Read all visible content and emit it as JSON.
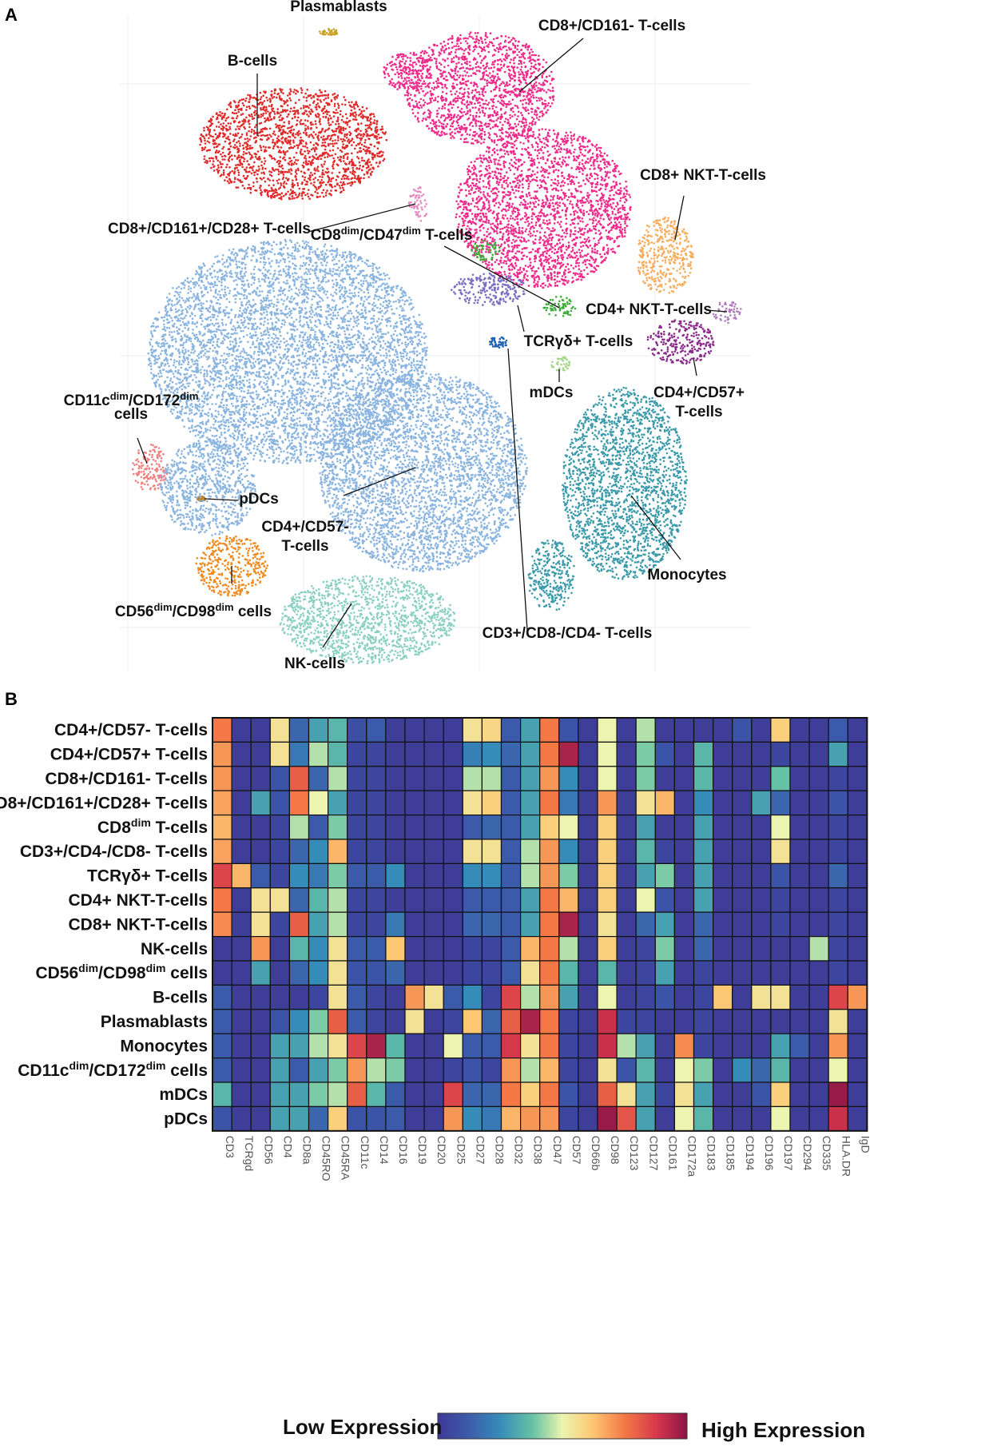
{
  "panels": {
    "a": "A",
    "b": "B"
  },
  "chart_data": [
    {
      "type": "scatter",
      "title": "",
      "clusters": [
        {
          "name": "B-cells",
          "label": "B-cells",
          "color": "#e02a2a"
        },
        {
          "name": "Plasmablasts",
          "label": "Plasmablasts",
          "color": "#c9a227"
        },
        {
          "name": "CD8+/CD161- T-cells",
          "label": "CD8+/CD161- T-cells",
          "color": "#ee2a8a"
        },
        {
          "name": "CD8+/CD161+/CD28+ T-cells",
          "label": "CD8+/CD161+/CD28+ T-cells",
          "color": "#e58ac0"
        },
        {
          "name": "CD8dim/CD47dim T-cells",
          "label_main": "CD8",
          "label_sup1": "dim",
          "label_mid": "/CD47",
          "label_sup2": "dim",
          "label_end": " T-cells",
          "color": "#3daa3a"
        },
        {
          "name": "CD8+ NKT-T-cells",
          "label": "CD8+ NKT-T-cells",
          "color": "#f6ad5e"
        },
        {
          "name": "CD4+ NKT-T-cells",
          "label": "CD4+ NKT-T-cells",
          "color": "#b07cc0"
        },
        {
          "name": "TCRγδ+ T-cells",
          "label": "TCRγδ+ T-cells",
          "color": "#7a6cc0"
        },
        {
          "name": "CD4+/CD57+ T-cells",
          "label_line1": "CD4+/CD57+",
          "label_line2": "T-cells",
          "color": "#8a2a8a"
        },
        {
          "name": "mDCs",
          "label": "mDCs",
          "color": "#a6d68a"
        },
        {
          "name": "CD11cdim/CD172dim cells",
          "label_main": "CD11c",
          "label_sup1": "dim",
          "label_mid": "/CD172",
          "label_sup2": "dim",
          "label_line2": "cells",
          "color": "#f08080"
        },
        {
          "name": "pDCs",
          "label": "pDCs",
          "color": "#b8862a"
        },
        {
          "name": "CD4+/CD57- T-cells",
          "label_line1": "CD4+/CD57-",
          "label_line2": "T-cells",
          "color": "#8ab4e0"
        },
        {
          "name": "Monocytes",
          "label": "Monocytes",
          "color": "#3a9aaa"
        },
        {
          "name": "CD56dim/CD98dim cells",
          "label_main": "CD56",
          "label_sup1": "dim",
          "label_mid": "/CD98",
          "label_sup2": "dim",
          "label_end": " cells",
          "color": "#f08a1e"
        },
        {
          "name": "NK-cells",
          "label": "NK-cells",
          "color": "#8ad0c0"
        },
        {
          "name": "CD3+/CD8-/CD4- T-cells",
          "label": "CD3+/CD8-/CD4- T-cells",
          "color": "#1f5fb0"
        }
      ]
    },
    {
      "type": "heatmap",
      "title": "",
      "rows": [
        "CD4+/CD57- T-cells",
        "CD4+/CD57+ T-cells",
        "CD8+/CD161- T-cells",
        "CD8+/CD161+/CD28+ T-cells",
        "CD8dim T-cells",
        "CD3+/CD4-/CD8- T-cells",
        "TCRγδ+ T-cells",
        "CD4+ NKT-T-cells",
        "CD8+ NKT-T-cells",
        "NK-cells",
        "CD56dim/CD98dim cells",
        "B-cells",
        "Plasmablasts",
        "Monocytes",
        "CD11cdim/CD172dim cells",
        "mDCs",
        "pDCs"
      ],
      "row_labels": [
        {
          "main": "CD4+/CD57- T-cells"
        },
        {
          "main": "CD4+/CD57+ T-cells"
        },
        {
          "main": "CD8+/CD161- T-cells"
        },
        {
          "main": "CD8+/CD161+/CD28+ T-cells"
        },
        {
          "main": "CD8",
          "sup": "dim",
          "rest": " T-cells"
        },
        {
          "main": "CD3+/CD4-/CD8- T-cells"
        },
        {
          "main": "TCRγδ+ T-cells"
        },
        {
          "main": "CD4+ NKT-T-cells"
        },
        {
          "main": "CD8+ NKT-T-cells"
        },
        {
          "main": "NK-cells"
        },
        {
          "main": "CD56",
          "sup": "dim",
          "mid": "/CD98",
          "sup2": "dim",
          "rest": " cells"
        },
        {
          "main": "B-cells"
        },
        {
          "main": "Plasmablasts"
        },
        {
          "main": "Monocytes"
        },
        {
          "main": "CD11c",
          "sup": "dim",
          "mid": "/CD172",
          "sup2": "dim",
          "rest": " cells"
        },
        {
          "main": "mDCs"
        },
        {
          "main": "pDCs"
        }
      ],
      "columns": [
        "CD3",
        "TCRgd",
        "CD56",
        "CD4",
        "CD8a",
        "CD45RO",
        "CD45RA",
        "CD11c",
        "CD14",
        "CD16",
        "CD19",
        "CD20",
        "CD25",
        "CD27",
        "CD28",
        "CD32",
        "CD38",
        "CD47",
        "CD57",
        "CD66b",
        "CD98",
        "CD123",
        "CD127",
        "CD161",
        "CD172a",
        "CD183",
        "CD185",
        "CD194",
        "CD196",
        "CD197",
        "CD294",
        "CD335",
        "HLA.DR",
        "IgD"
      ],
      "value_range": [
        0,
        1
      ],
      "values": [
        [
          0.75,
          0.02,
          0.02,
          0.55,
          0.15,
          0.3,
          0.35,
          0.08,
          0.12,
          0.02,
          0.02,
          0.02,
          0.02,
          0.55,
          0.58,
          0.12,
          0.3,
          0.75,
          0.1,
          0.02,
          0.5,
          0.02,
          0.45,
          0.02,
          0.02,
          0.02,
          0.02,
          0.1,
          0.02,
          0.6,
          0.02,
          0.02,
          0.12,
          0.02
        ],
        [
          0.7,
          0.02,
          0.02,
          0.55,
          0.2,
          0.45,
          0.35,
          0.05,
          0.05,
          0.02,
          0.02,
          0.02,
          0.02,
          0.22,
          0.25,
          0.15,
          0.3,
          0.75,
          0.95,
          0.02,
          0.5,
          0.02,
          0.4,
          0.1,
          0.02,
          0.35,
          0.02,
          0.02,
          0.02,
          0.05,
          0.02,
          0.02,
          0.3,
          0.02
        ],
        [
          0.7,
          0.02,
          0.02,
          0.1,
          0.8,
          0.15,
          0.45,
          0.05,
          0.05,
          0.02,
          0.02,
          0.02,
          0.02,
          0.45,
          0.45,
          0.12,
          0.3,
          0.7,
          0.25,
          0.02,
          0.5,
          0.02,
          0.4,
          0.02,
          0.02,
          0.35,
          0.02,
          0.02,
          0.02,
          0.38,
          0.02,
          0.02,
          0.05,
          0.02
        ],
        [
          0.68,
          0.02,
          0.3,
          0.1,
          0.75,
          0.5,
          0.3,
          0.05,
          0.05,
          0.02,
          0.02,
          0.02,
          0.02,
          0.55,
          0.6,
          0.12,
          0.3,
          0.75,
          0.2,
          0.02,
          0.7,
          0.02,
          0.55,
          0.65,
          0.02,
          0.25,
          0.02,
          0.02,
          0.3,
          0.15,
          0.02,
          0.02,
          0.1,
          0.02
        ],
        [
          0.65,
          0.02,
          0.02,
          0.05,
          0.45,
          0.12,
          0.4,
          0.05,
          0.05,
          0.02,
          0.02,
          0.02,
          0.02,
          0.12,
          0.15,
          0.12,
          0.3,
          0.6,
          0.5,
          0.02,
          0.6,
          0.02,
          0.3,
          0.02,
          0.02,
          0.3,
          0.02,
          0.02,
          0.02,
          0.5,
          0.02,
          0.02,
          0.05,
          0.02
        ],
        [
          0.68,
          0.02,
          0.02,
          0.05,
          0.15,
          0.25,
          0.65,
          0.05,
          0.05,
          0.02,
          0.02,
          0.02,
          0.02,
          0.55,
          0.55,
          0.12,
          0.45,
          0.7,
          0.25,
          0.02,
          0.6,
          0.02,
          0.35,
          0.05,
          0.02,
          0.3,
          0.02,
          0.02,
          0.02,
          0.55,
          0.02,
          0.02,
          0.05,
          0.02
        ],
        [
          0.85,
          0.65,
          0.12,
          0.05,
          0.25,
          0.2,
          0.4,
          0.12,
          0.12,
          0.25,
          0.02,
          0.02,
          0.02,
          0.25,
          0.25,
          0.12,
          0.45,
          0.7,
          0.4,
          0.02,
          0.6,
          0.02,
          0.3,
          0.4,
          0.02,
          0.3,
          0.02,
          0.02,
          0.02,
          0.1,
          0.02,
          0.02,
          0.15,
          0.02
        ],
        [
          0.75,
          0.02,
          0.55,
          0.55,
          0.15,
          0.35,
          0.45,
          0.05,
          0.05,
          0.02,
          0.02,
          0.02,
          0.02,
          0.12,
          0.12,
          0.12,
          0.3,
          0.75,
          0.65,
          0.02,
          0.6,
          0.02,
          0.5,
          0.1,
          0.02,
          0.3,
          0.02,
          0.02,
          0.02,
          0.05,
          0.02,
          0.02,
          0.05,
          0.02
        ],
        [
          0.72,
          0.02,
          0.55,
          0.05,
          0.8,
          0.3,
          0.45,
          0.05,
          0.05,
          0.2,
          0.02,
          0.02,
          0.02,
          0.15,
          0.15,
          0.12,
          0.3,
          0.75,
          0.95,
          0.02,
          0.55,
          0.02,
          0.15,
          0.3,
          0.02,
          0.15,
          0.02,
          0.02,
          0.02,
          0.05,
          0.02,
          0.02,
          0.05,
          0.02
        ],
        [
          0.02,
          0.02,
          0.7,
          0.02,
          0.35,
          0.25,
          0.55,
          0.12,
          0.12,
          0.62,
          0.02,
          0.02,
          0.02,
          0.05,
          0.05,
          0.12,
          0.65,
          0.75,
          0.45,
          0.02,
          0.6,
          0.02,
          0.05,
          0.4,
          0.02,
          0.15,
          0.02,
          0.02,
          0.02,
          0.02,
          0.02,
          0.45,
          0.05,
          0.02
        ],
        [
          0.02,
          0.02,
          0.3,
          0.02,
          0.15,
          0.25,
          0.55,
          0.1,
          0.1,
          0.15,
          0.02,
          0.02,
          0.02,
          0.05,
          0.05,
          0.12,
          0.55,
          0.75,
          0.35,
          0.02,
          0.35,
          0.02,
          0.05,
          0.3,
          0.02,
          0.05,
          0.02,
          0.02,
          0.02,
          0.02,
          0.02,
          0.02,
          0.05,
          0.02
        ],
        [
          0.12,
          0.02,
          0.02,
          0.02,
          0.02,
          0.05,
          0.55,
          0.12,
          0.05,
          0.02,
          0.7,
          0.55,
          0.12,
          0.25,
          0.05,
          0.85,
          0.45,
          0.7,
          0.3,
          0.02,
          0.5,
          0.02,
          0.05,
          0.1,
          0.02,
          0.05,
          0.62,
          0.02,
          0.55,
          0.55,
          0.02,
          0.02,
          0.85,
          0.7
        ],
        [
          0.12,
          0.02,
          0.02,
          0.1,
          0.25,
          0.4,
          0.8,
          0.12,
          0.05,
          0.02,
          0.55,
          0.02,
          0.05,
          0.62,
          0.15,
          0.8,
          0.95,
          0.75,
          0.05,
          0.02,
          0.9,
          0.05,
          0.05,
          0.02,
          0.02,
          0.05,
          0.02,
          0.02,
          0.02,
          0.02,
          0.02,
          0.02,
          0.55,
          0.02
        ],
        [
          0.12,
          0.02,
          0.02,
          0.3,
          0.3,
          0.45,
          0.55,
          0.85,
          0.95,
          0.35,
          0.02,
          0.02,
          0.5,
          0.12,
          0.12,
          0.88,
          0.55,
          0.75,
          0.05,
          0.02,
          0.9,
          0.45,
          0.3,
          0.02,
          0.72,
          0.05,
          0.02,
          0.02,
          0.02,
          0.3,
          0.12,
          0.02,
          0.7,
          0.02
        ],
        [
          0.12,
          0.02,
          0.02,
          0.3,
          0.12,
          0.3,
          0.4,
          0.7,
          0.45,
          0.4,
          0.02,
          0.02,
          0.05,
          0.1,
          0.05,
          0.7,
          0.45,
          0.65,
          0.05,
          0.02,
          0.55,
          0.1,
          0.35,
          0.02,
          0.5,
          0.4,
          0.02,
          0.25,
          0.15,
          0.35,
          0.02,
          0.02,
          0.5,
          0.02
        ],
        [
          0.35,
          0.02,
          0.02,
          0.3,
          0.3,
          0.4,
          0.45,
          0.8,
          0.35,
          0.12,
          0.02,
          0.02,
          0.85,
          0.15,
          0.15,
          0.75,
          0.6,
          0.75,
          0.1,
          0.02,
          0.8,
          0.55,
          0.3,
          0.05,
          0.55,
          0.3,
          0.02,
          0.02,
          0.1,
          0.6,
          0.02,
          0.02,
          0.98,
          0.02
        ],
        [
          0.1,
          0.02,
          0.02,
          0.3,
          0.3,
          0.15,
          0.6,
          0.1,
          0.1,
          0.12,
          0.02,
          0.02,
          0.7,
          0.25,
          0.2,
          0.65,
          0.7,
          0.7,
          0.05,
          0.02,
          0.98,
          0.82,
          0.3,
          0.02,
          0.5,
          0.35,
          0.02,
          0.02,
          0.02,
          0.5,
          0.02,
          0.02,
          0.9,
          0.02
        ]
      ]
    }
  ],
  "legend": {
    "low": "Low Expression",
    "high": "High Expression"
  }
}
